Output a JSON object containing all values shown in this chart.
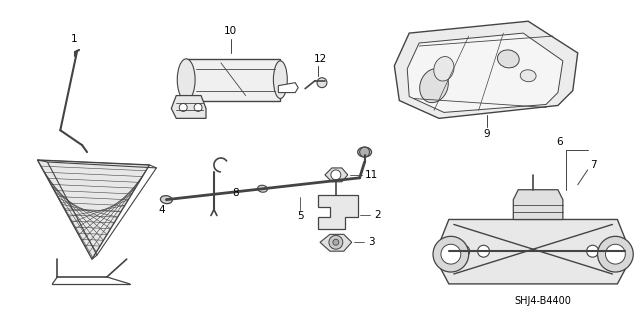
{
  "bg_color": "#ffffff",
  "line_color": "#444444",
  "label_color": "#000000",
  "fig_width": 6.4,
  "fig_height": 3.19,
  "dpi": 100,
  "catalog_code": "SHJ4-B4400",
  "font_size_labels": 7.5,
  "font_size_code": 7
}
